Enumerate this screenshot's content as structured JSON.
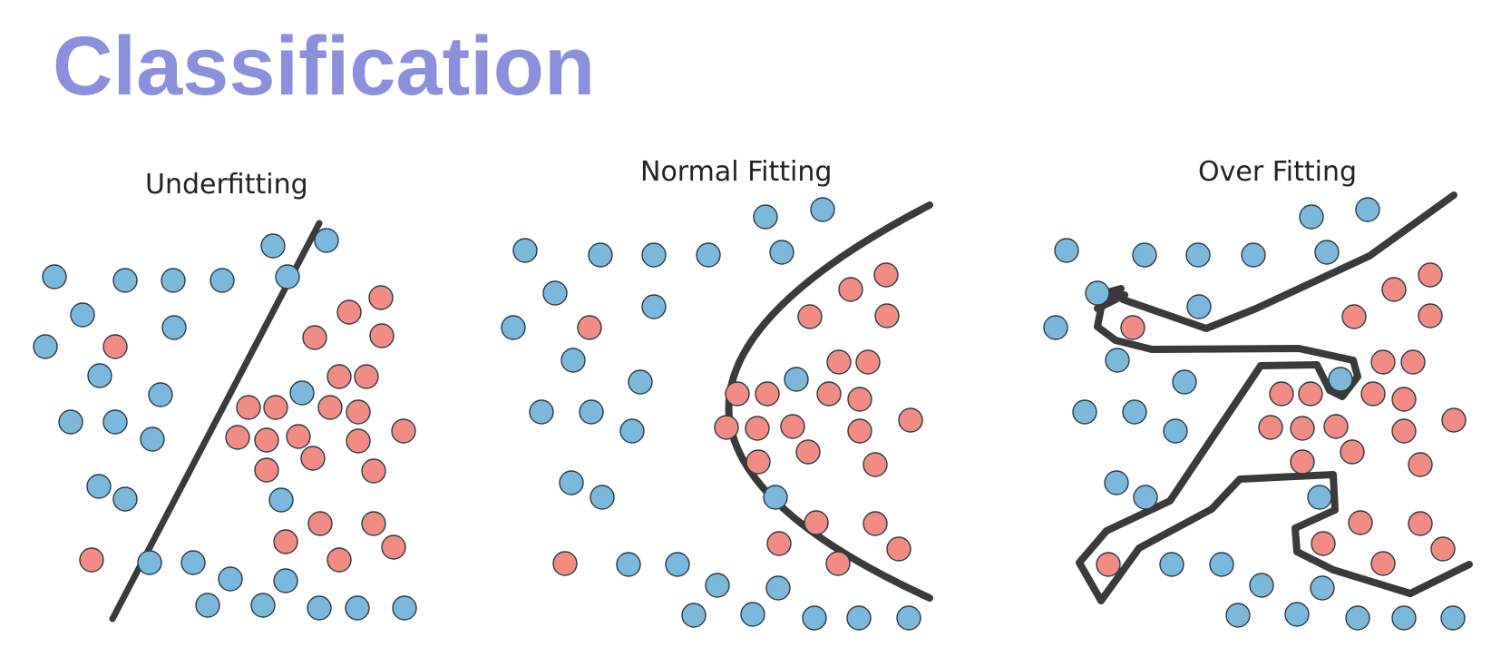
{
  "title": "Classification",
  "colors": {
    "title": "#8c8fdb",
    "class_blue": "#7bb8dc",
    "class_red": "#f08c84",
    "boundary": "#3a3a3a"
  },
  "panels": [
    {
      "title": "Underfitting"
    },
    {
      "title": "Normal Fitting"
    },
    {
      "title": "Over Fitting"
    }
  ]
}
